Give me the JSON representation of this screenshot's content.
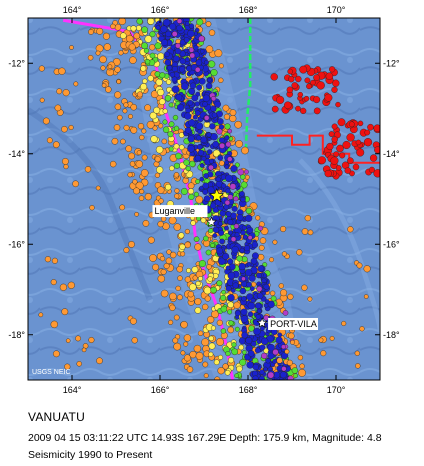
{
  "map": {
    "lon_range": [
      163.0,
      171.0
    ],
    "lat_range": [
      -19.0,
      -11.0
    ],
    "lon_ticks": [
      {
        "value": 164,
        "label": "164°"
      },
      {
        "value": 166,
        "label": "166°"
      },
      {
        "value": 168,
        "label": "168°"
      },
      {
        "value": 170,
        "label": "170°"
      }
    ],
    "lat_ticks": [
      {
        "value": -12,
        "label": "-12°"
      },
      {
        "value": -14,
        "label": "-14°"
      },
      {
        "value": -16,
        "label": "-16°"
      },
      {
        "value": -18,
        "label": "-18°"
      }
    ],
    "places": [
      {
        "name": "Luganville",
        "lon": 167.17,
        "lat": -15.51
      },
      {
        "name": "PORT-VILA",
        "lon": 168.32,
        "lat": -17.74
      }
    ],
    "epicenter": {
      "lon": 167.29,
      "lat": -14.93
    },
    "credit": "USGS NEIC",
    "colors": {
      "sea": "#5f88c8",
      "trench": "#ff33ff",
      "ridge": "#22ee66",
      "fault": "#ff2222",
      "depth_0_33": "#ff9933",
      "depth_33_70": "#ffee55",
      "depth_70_150": "#55dd33",
      "depth_150_300": "#1a22cc",
      "depth_300_500": "#b23cc8",
      "depth_500_plus": "#ee1111"
    }
  },
  "caption": {
    "title": "VANUATU",
    "event": "2009 04 15 03:11:22 UTC 14.93S 167.29E Depth: 175.9 km, Magnitude: 4.8",
    "seismicity": "Seismicity 1990 to Present"
  }
}
